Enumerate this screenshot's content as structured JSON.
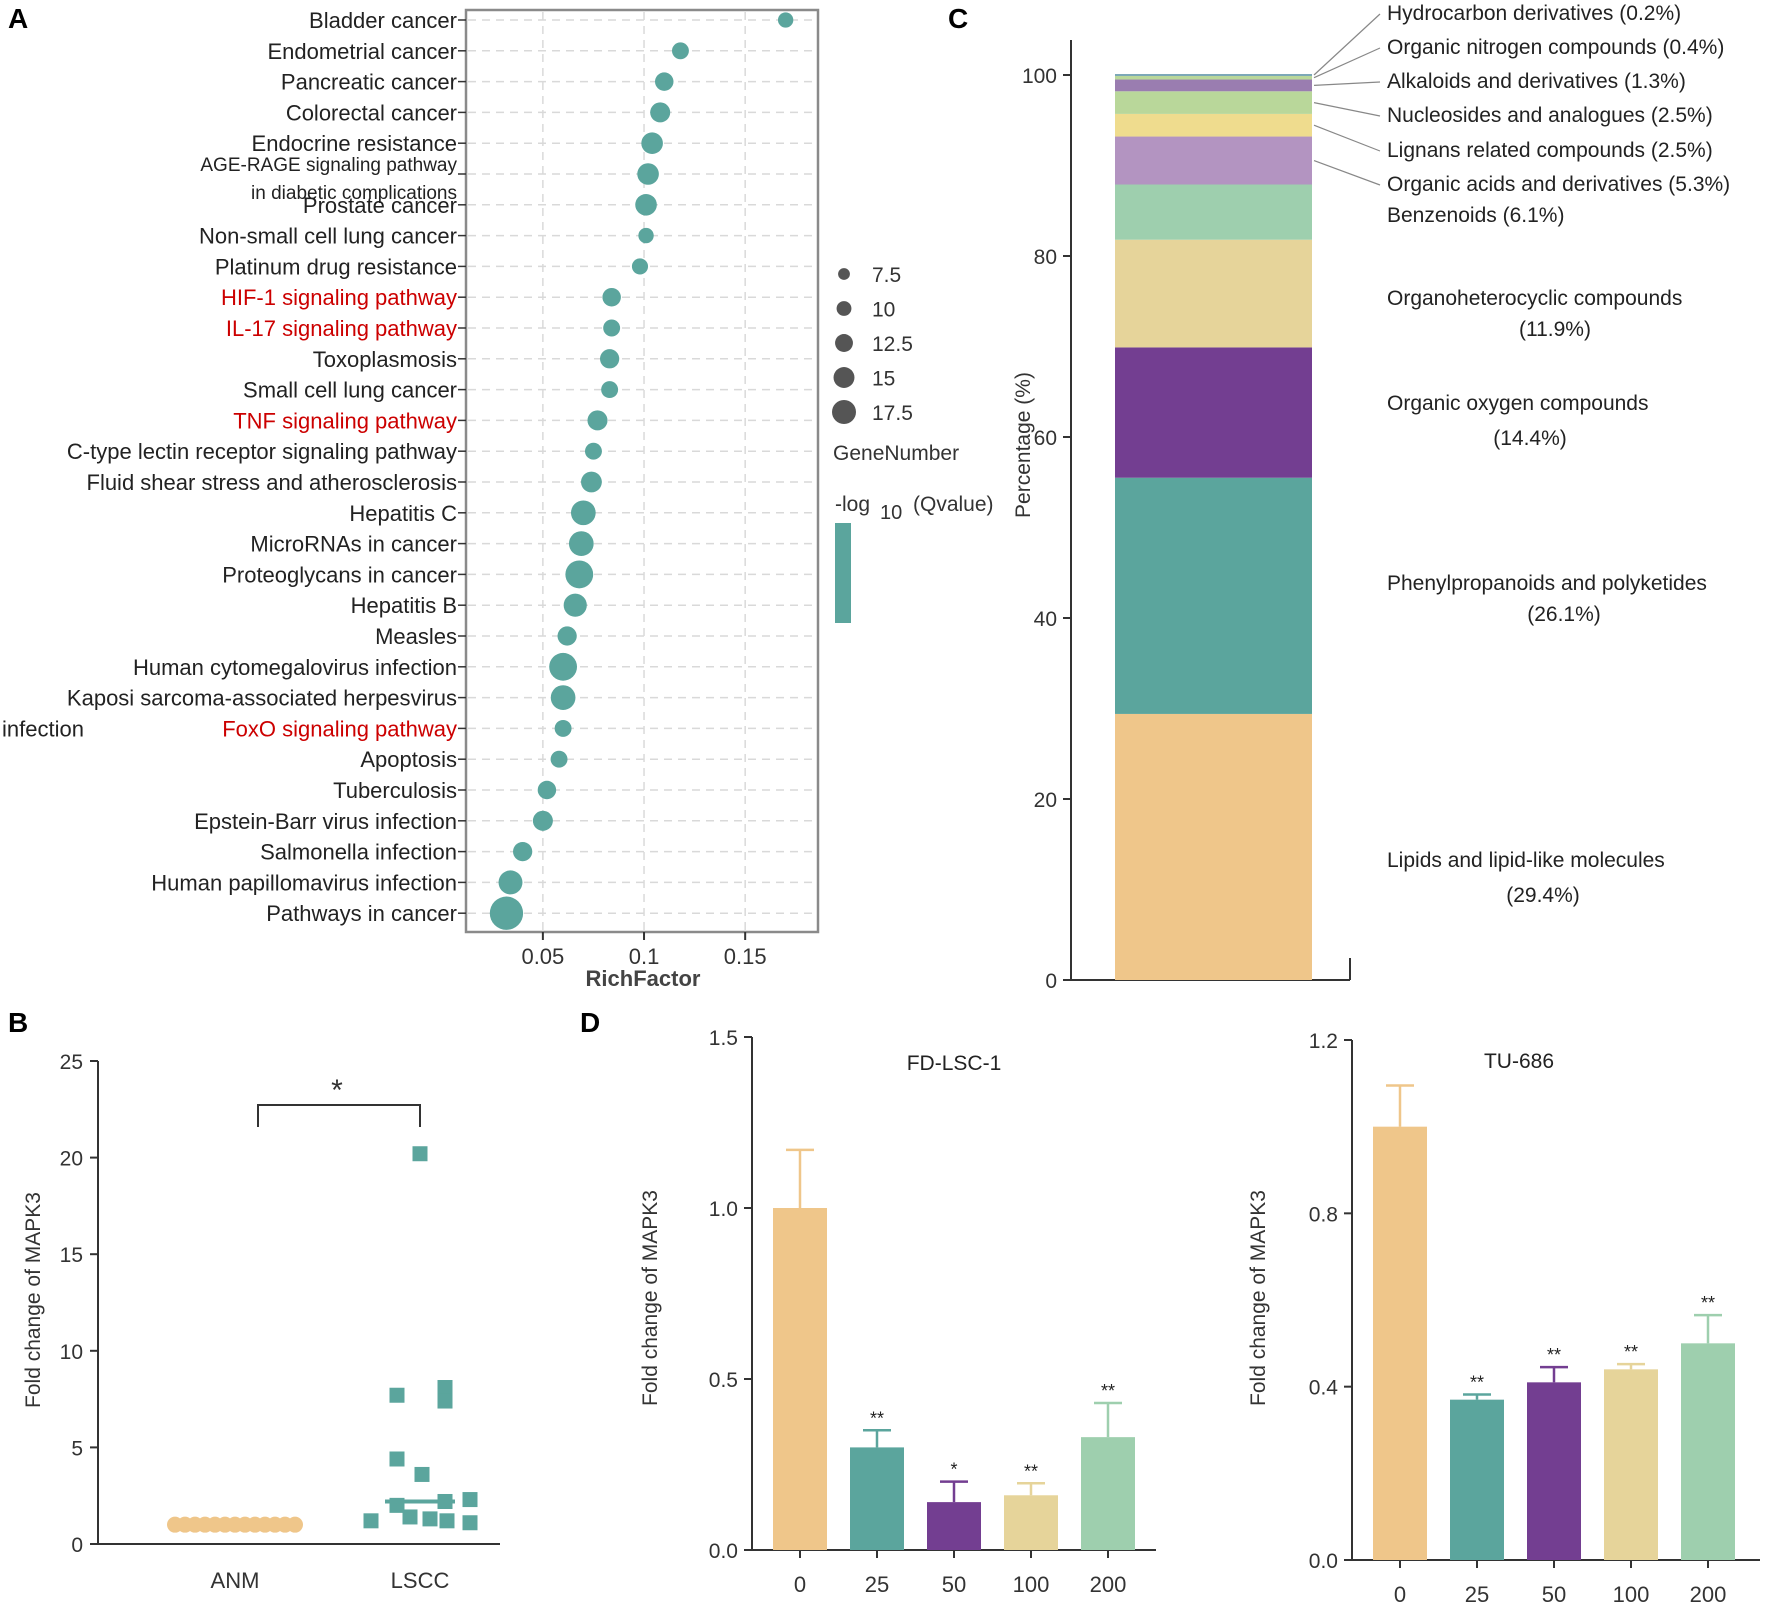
{
  "colors": {
    "teal": "#5ba59d",
    "orange": "#efc68a",
    "purple": "#733e91",
    "yellow": "#e6d49a",
    "lightgreen": "#9ecfae",
    "lightpurple": "#b394c1",
    "olive": "#b9d79a",
    "lightyellow": "#efdc8e",
    "mauve": "#9a7db0",
    "axis": "#333333",
    "highlight": "#cc0000",
    "frame": "#8a8a8a",
    "grid": "#d9d9d9"
  },
  "panels": {
    "a": "A",
    "b": "B",
    "c": "C",
    "d": "D"
  },
  "chart_data": [
    {
      "panel": "A",
      "type": "scatter",
      "xlabel": "RichFactor",
      "xticks": [
        "0.05",
        "0.1",
        "0.15"
      ],
      "xtick_values": [
        0.05,
        0.1,
        0.15
      ],
      "xlim": [
        0.012,
        0.186
      ],
      "grid": true,
      "legend_size_title": "GeneNumber",
      "legend_sizes": [
        {
          "label": "7.5",
          "value": 7.5
        },
        {
          "label": "10",
          "value": 10
        },
        {
          "label": "12.5",
          "value": 12.5
        },
        {
          "label": "15",
          "value": 15
        },
        {
          "label": "17.5",
          "value": 17.5
        }
      ],
      "legend_color_title": "-log",
      "legend_color_sub": "10",
      "legend_color_title2": "(Qvalue)",
      "points": [
        {
          "label": "Bladder cancer",
          "x": 0.17,
          "size": 6,
          "red": false
        },
        {
          "label": "Endometrial cancer",
          "x": 0.118,
          "size": 7,
          "red": false
        },
        {
          "label": "Pancreatic cancer",
          "x": 0.11,
          "size": 8,
          "red": false
        },
        {
          "label": "Colorectal cancer",
          "x": 0.108,
          "size": 9,
          "red": false
        },
        {
          "label": "Endocrine resistance",
          "x": 0.104,
          "size": 10,
          "red": false
        },
        {
          "label": "AGE-RAGE signaling pathway",
          "label2": "in diabetic complications",
          "x": 0.102,
          "size": 10,
          "red": false
        },
        {
          "label": "Prostate cancer",
          "x": 0.101,
          "size": 10,
          "red": false
        },
        {
          "label": "Non-small cell lung cancer",
          "x": 0.101,
          "size": 6,
          "red": false
        },
        {
          "label": "Platinum drug resistance",
          "x": 0.098,
          "size": 6.5,
          "red": false
        },
        {
          "label": "HIF-1 signaling pathway",
          "x": 0.084,
          "size": 8,
          "red": true
        },
        {
          "label": "IL-17 signaling pathway",
          "x": 0.084,
          "size": 7,
          "red": true
        },
        {
          "label": "Toxoplasmosis",
          "x": 0.083,
          "size": 8.5,
          "red": false
        },
        {
          "label": "Small cell lung cancer",
          "x": 0.083,
          "size": 7,
          "red": false
        },
        {
          "label": "TNF signaling pathway",
          "x": 0.077,
          "size": 9,
          "red": true
        },
        {
          "label": "C-type lectin receptor signaling pathway",
          "x": 0.075,
          "size": 7,
          "red": false
        },
        {
          "label": "Fluid shear stress and atherosclerosis",
          "x": 0.074,
          "size": 9.5,
          "red": false
        },
        {
          "label": "Hepatitis C",
          "x": 0.07,
          "size": 12,
          "red": false
        },
        {
          "label": "MicroRNAs in cancer",
          "x": 0.069,
          "size": 12,
          "red": false
        },
        {
          "label": "Proteoglycans in cancer",
          "x": 0.068,
          "size": 14,
          "red": false
        },
        {
          "label": "Hepatitis B",
          "x": 0.066,
          "size": 11,
          "red": false
        },
        {
          "label": "Measles",
          "x": 0.062,
          "size": 8.5,
          "red": false
        },
        {
          "label": "Human cytomegalovirus infection",
          "x": 0.06,
          "size": 14,
          "red": false
        },
        {
          "label": "Kaposi sarcoma-associated herpesvirus",
          "x": 0.06,
          "size": 12,
          "red": false
        },
        {
          "label": "FoxO signaling pathway",
          "prefix": "infection",
          "x": 0.06,
          "size": 7,
          "red": true
        },
        {
          "label": "Apoptosis",
          "x": 0.058,
          "size": 7,
          "red": false
        },
        {
          "label": "Tuberculosis",
          "x": 0.052,
          "size": 8,
          "red": false
        },
        {
          "label": "Epstein-Barr virus infection",
          "x": 0.05,
          "size": 9,
          "red": false
        },
        {
          "label": "Salmonella infection",
          "x": 0.04,
          "size": 8.5,
          "red": false
        },
        {
          "label": "Human papillomavirus infection",
          "x": 0.034,
          "size": 11.5,
          "red": false
        },
        {
          "label": "Pathways in cancer",
          "x": 0.032,
          "size": 17.5,
          "red": false
        }
      ]
    },
    {
      "panel": "B",
      "type": "scatter",
      "ylabel": "Fold change of MAPK3",
      "yticks": [
        "0",
        "5",
        "10",
        "15",
        "20",
        "25"
      ],
      "ylim": [
        0,
        25
      ],
      "categories": [
        "ANM",
        "LSCC"
      ],
      "significance": "*",
      "anm_values": [
        1,
        1,
        1,
        1,
        1,
        1,
        1,
        1,
        1,
        1,
        1,
        1,
        1
      ],
      "anm_mean": 1.0,
      "lscc_points": [
        {
          "dx": 0,
          "y": 20.2
        },
        {
          "dx": -23,
          "y": 7.7
        },
        {
          "dx": 25,
          "y": 8.1
        },
        {
          "dx": 25,
          "y": 7.4
        },
        {
          "dx": -23,
          "y": 4.4
        },
        {
          "dx": 2,
          "y": 3.6
        },
        {
          "dx": -23,
          "y": 2.0
        },
        {
          "dx": 25,
          "y": 2.2
        },
        {
          "dx": 50,
          "y": 2.3
        },
        {
          "dx": -49,
          "y": 1.2
        },
        {
          "dx": -10,
          "y": 1.4
        },
        {
          "dx": 10,
          "y": 1.3
        },
        {
          "dx": 27,
          "y": 1.2
        },
        {
          "dx": 50,
          "y": 1.1
        }
      ],
      "lscc_mean": 2.2
    },
    {
      "panel": "C",
      "type": "bar",
      "stacked": true,
      "ylabel": "Percentage (%)",
      "yticks": [
        "0",
        "20",
        "40",
        "60",
        "80",
        "100"
      ],
      "ylim": [
        0,
        100
      ],
      "segments": [
        {
          "name": "Lipids and lipid-like molecules",
          "pct": "(29.4%)",
          "value": 29.4,
          "color": "#efc68a"
        },
        {
          "name": "Phenylpropanoids and polyketides",
          "pct": "(26.1%)",
          "value": 26.1,
          "color": "#5ba59d"
        },
        {
          "name": "Organic oxygen compounds",
          "pct": "(14.4%)",
          "value": 14.4,
          "color": "#733e91"
        },
        {
          "name": "Organoheterocyclic compounds",
          "pct": "(11.9%)",
          "value": 11.9,
          "color": "#e6d49a"
        },
        {
          "name": "Benzenoids (6.1%)",
          "value": 6.1,
          "color": "#9ecfae"
        },
        {
          "name": "Organic acids and derivatives (5.3%)",
          "value": 5.3,
          "color": "#b394c1"
        },
        {
          "name": "Lignans related compounds (2.5%)",
          "value": 2.5,
          "color": "#efdc8e"
        },
        {
          "name": "Nucleosides and analogues (2.5%)",
          "value": 2.5,
          "color": "#b9d79a"
        },
        {
          "name": "Alkaloids and derivatives (1.3%)",
          "value": 1.3,
          "color": "#9a7db0"
        },
        {
          "name": "Organic nitrogen compounds (0.4%)",
          "value": 0.4,
          "color": "#b9d79a"
        },
        {
          "name": "Hydrocarbon derivatives (0.2%)",
          "value": 0.2,
          "color": "#6f9fb0"
        }
      ]
    },
    {
      "panel": "D1",
      "type": "bar",
      "title": "FD-LSC-1",
      "ylabel": "Fold change of MAPK3",
      "yticks": [
        "0.0",
        "0.5",
        "1.0",
        "1.5"
      ],
      "ylim": [
        0,
        1.5
      ],
      "categories": [
        "0",
        "25",
        "50",
        "100",
        "200"
      ],
      "values": [
        1.0,
        0.3,
        0.14,
        0.16,
        0.33
      ],
      "errors": [
        0.17,
        0.05,
        0.06,
        0.035,
        0.1
      ],
      "significance": [
        "",
        "**",
        "*",
        "**",
        "**"
      ]
    },
    {
      "panel": "D2",
      "type": "bar",
      "title": "TU-686",
      "ylabel": "Fold change of MAPK3",
      "yticks": [
        "0.0",
        "0.4",
        "0.8",
        "1.2"
      ],
      "ylim": [
        0,
        1.2
      ],
      "categories": [
        "0",
        "25",
        "50",
        "100",
        "200"
      ],
      "values": [
        1.0,
        0.37,
        0.41,
        0.44,
        0.5
      ],
      "errors": [
        0.095,
        0.012,
        0.035,
        0.012,
        0.065
      ],
      "significance": [
        "",
        "**",
        "**",
        "**",
        "**"
      ]
    }
  ]
}
